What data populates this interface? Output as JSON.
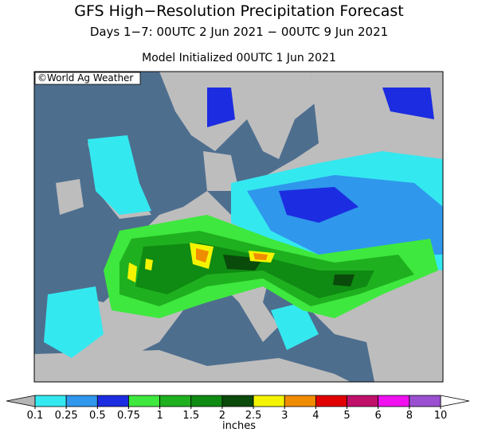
{
  "header": {
    "title": "GFS High−Resolution Precipitation Forecast",
    "subtitle": "Days 1−7: 00UTC 2 Jun 2021 − 00UTC 9 Jun 2021",
    "init": "Model Initialized 00UTC 1 Jun 2021"
  },
  "map": {
    "credit": "©World Ag Weather"
  },
  "colorbar": {
    "ticks": [
      0.1,
      0.25,
      0.5,
      0.75,
      1,
      1.5,
      2,
      2.5,
      3,
      4,
      5,
      6,
      8,
      10
    ],
    "colors": [
      "#34e8f0",
      "#2f97ec",
      "#1c2ce0",
      "#3ee83e",
      "#1fb01f",
      "#0f8a12",
      "#0a4a0a",
      "#f4f400",
      "#f08c00",
      "#e00000",
      "#c0106a",
      "#f010f0",
      "#9a50d0"
    ],
    "under_color": "#b4b4b4",
    "over_color": "#ffffff",
    "label": "inches"
  }
}
